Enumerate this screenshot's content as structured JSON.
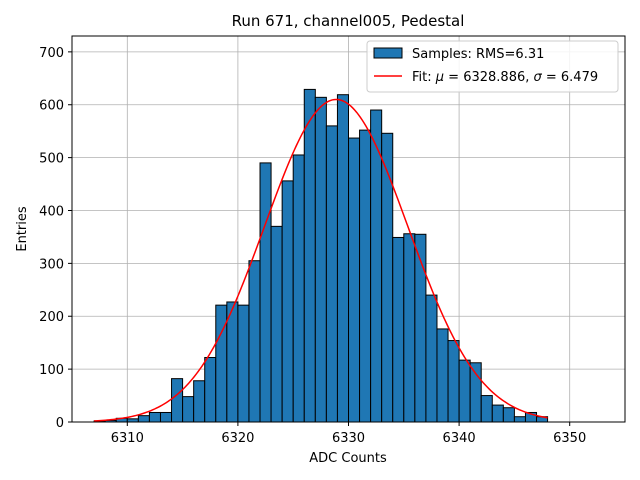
{
  "chart_data": {
    "type": "bar",
    "title": "Run 671, channel005, Pedestal",
    "xlabel": "ADC Counts",
    "ylabel": "Entries",
    "xlim": [
      6305,
      6355
    ],
    "ylim": [
      0,
      730
    ],
    "xticks": [
      6310,
      6320,
      6330,
      6340,
      6350
    ],
    "yticks": [
      0,
      100,
      200,
      300,
      400,
      500,
      600,
      700
    ],
    "grid": true,
    "legend_position": "top-right",
    "colors": {
      "bars": "#1f77b4",
      "bar_edge": "#000000",
      "fit": "#ff0000"
    },
    "histogram": {
      "name": "Samples: RMS=6.31",
      "bin_width": 1,
      "bin_starts": [
        6307,
        6308,
        6309,
        6310,
        6311,
        6312,
        6313,
        6314,
        6315,
        6316,
        6317,
        6318,
        6319,
        6320,
        6321,
        6322,
        6323,
        6324,
        6325,
        6326,
        6327,
        6328,
        6329,
        6330,
        6331,
        6332,
        6333,
        6334,
        6335,
        6336,
        6337,
        6338,
        6339,
        6340,
        6341,
        6342,
        6343,
        6344,
        6345,
        6346,
        6347
      ],
      "counts": [
        2,
        3,
        7,
        6,
        12,
        18,
        18,
        82,
        48,
        78,
        122,
        221,
        227,
        221,
        305,
        490,
        370,
        456,
        505,
        629,
        614,
        560,
        619,
        537,
        552,
        590,
        546,
        349,
        356,
        355,
        240,
        176,
        154,
        117,
        112,
        50,
        32,
        27,
        10,
        18,
        10
      ]
    },
    "fit": {
      "name_prefix": "Fit: ",
      "name_mu_symbol": "μ",
      "name_mu_value": " = 6328.886, ",
      "name_sigma_symbol": "σ",
      "name_sigma_value": " = 6.479",
      "mu": 6328.886,
      "sigma": 6.479,
      "amplitude": 610,
      "x_range": [
        6307,
        6348
      ]
    }
  }
}
